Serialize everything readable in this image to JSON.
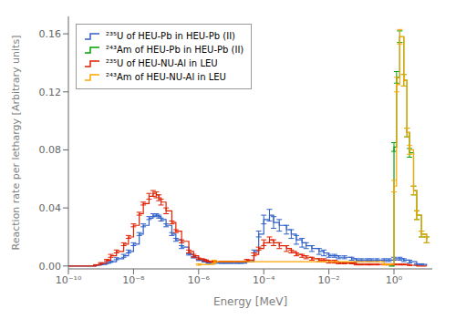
{
  "chart_data": {
    "type": "line",
    "line_style": "steps",
    "log": "x",
    "xlabel": "Energy [MeV]",
    "ylabel": "Reaction rate per lethargy [Arbitrary units]",
    "xlim": [
      1e-10,
      15
    ],
    "xticks": [
      {
        "value": 1e-10,
        "label": "10⁻¹⁰"
      },
      {
        "value": 1e-08,
        "label": "10⁻⁸"
      },
      {
        "value": 1e-06,
        "label": "10⁻⁶"
      },
      {
        "value": 0.0001,
        "label": "10⁻⁴"
      },
      {
        "value": 0.01,
        "label": "10⁻²"
      },
      {
        "value": 1,
        "label": "10⁰"
      }
    ],
    "ylim": [
      -0.002,
      0.172
    ],
    "yticks": [
      {
        "value": 0.0,
        "label": "0.00"
      },
      0.04,
      0.08,
      0.12,
      0.16
    ],
    "grid": false,
    "legend": "upper left",
    "series": [
      {
        "name": "²³⁵U of HEU-Pb in HEU-Pb (II)",
        "color": "#3060C8",
        "x": [
          1e-10,
          2e-10,
          4e-10,
          7e-10,
          1e-09,
          1.5e-09,
          2e-09,
          3e-09,
          5e-09,
          7e-09,
          1e-08,
          1.5e-08,
          2e-08,
          3e-08,
          4e-08,
          5e-08,
          6e-08,
          7e-08,
          1e-07,
          1.5e-07,
          2e-07,
          3e-07,
          5e-07,
          7e-07,
          1e-06,
          1.5e-06,
          2e-06,
          3e-06,
          5e-06,
          7e-06,
          1e-05,
          1.5e-05,
          2e-05,
          3e-05,
          5e-05,
          7e-05,
          0.0001,
          0.00015,
          0.0002,
          0.0003,
          0.0005,
          0.0007,
          0.001,
          0.0015,
          0.002,
          0.003,
          0.005,
          0.007,
          0.01,
          0.015,
          0.02,
          0.03,
          0.05,
          0.07,
          0.1,
          0.15,
          0.2,
          0.3,
          0.5,
          0.7,
          1.0,
          1.5,
          2.0,
          3.0,
          5.0,
          7.0,
          10.0
        ],
        "values": [
          0.0,
          0.0,
          0.0,
          0.0005,
          0.001,
          0.002,
          0.003,
          0.005,
          0.007,
          0.01,
          0.015,
          0.022,
          0.028,
          0.033,
          0.035,
          0.035,
          0.034,
          0.032,
          0.028,
          0.022,
          0.018,
          0.013,
          0.008,
          0.006,
          0.004,
          0.003,
          0.002,
          0.002,
          0.002,
          0.002,
          0.002,
          0.002,
          0.002,
          0.003,
          0.01,
          0.022,
          0.032,
          0.035,
          0.03,
          0.028,
          0.025,
          0.022,
          0.018,
          0.016,
          0.014,
          0.012,
          0.01,
          0.009,
          0.007,
          0.007,
          0.006,
          0.006,
          0.005,
          0.004,
          0.004,
          0.004,
          0.004,
          0.004,
          0.004,
          0.004,
          0.005,
          0.005,
          0.004,
          0.003,
          0.001,
          0.001,
          0.0
        ],
        "errors": [
          0.0,
          0.0,
          0.0,
          0.0001,
          0.0002,
          0.0003,
          0.0005,
          0.0007,
          0.001,
          0.001,
          0.001,
          0.001,
          0.001,
          0.001,
          0.001,
          0.001,
          0.001,
          0.001,
          0.001,
          0.001,
          0.001,
          0.001,
          0.0005,
          0.0005,
          0.0003,
          0.0003,
          0.0002,
          0.0002,
          0.0002,
          0.0002,
          0.0002,
          0.0002,
          0.0002,
          0.0003,
          0.001,
          0.002,
          0.003,
          0.004,
          0.004,
          0.004,
          0.003,
          0.003,
          0.003,
          0.003,
          0.002,
          0.002,
          0.002,
          0.002,
          0.001,
          0.001,
          0.001,
          0.001,
          0.001,
          0.001,
          0.001,
          0.001,
          0.001,
          0.001,
          0.001,
          0.001,
          0.001,
          0.001,
          0.001,
          0.001,
          0.0005,
          0.0005,
          0.0
        ]
      },
      {
        "name": "²⁴³Am of HEU-Pb in HEU-Pb (II)",
        "color": "#00A000",
        "x": [
          0.7,
          1.0,
          1.2,
          1.5,
          2.0,
          2.5,
          3.0,
          4.0,
          5.0,
          7.0,
          10.0
        ],
        "values": [
          0.0,
          0.082,
          0.13,
          0.158,
          0.128,
          0.092,
          0.078,
          0.052,
          0.035,
          0.022,
          0.018
        ],
        "errors": [
          0.0,
          0.003,
          0.004,
          0.004,
          0.004,
          0.003,
          0.003,
          0.003,
          0.003,
          0.002,
          0.002
        ]
      },
      {
        "name": "²³⁵U of HEU-NU-Al in LEU",
        "color": "#E02000",
        "x": [
          1e-10,
          2e-10,
          4e-10,
          7e-10,
          1e-09,
          1.5e-09,
          2e-09,
          3e-09,
          5e-09,
          7e-09,
          1e-08,
          1.5e-08,
          2e-08,
          3e-08,
          4e-08,
          5e-08,
          6e-08,
          7e-08,
          1e-07,
          1.5e-07,
          2e-07,
          3e-07,
          5e-07,
          7e-07,
          1e-06,
          1.5e-06,
          2e-06,
          3e-06,
          5e-06,
          7e-06,
          1e-05,
          1.5e-05,
          2e-05,
          3e-05,
          5e-05,
          7e-05,
          0.0001,
          0.00015,
          0.0002,
          0.0003,
          0.0005,
          0.0007,
          0.001,
          0.0015,
          0.002,
          0.003,
          0.005,
          0.007,
          0.01,
          0.015,
          0.02,
          0.03,
          0.05,
          0.07,
          0.1,
          0.15,
          0.2,
          0.3,
          0.5,
          0.7,
          1.0,
          1.5,
          2.0,
          3.0,
          5.0,
          7.0,
          10.0
        ],
        "values": [
          0.0,
          0.0,
          0.0,
          0.0008,
          0.002,
          0.004,
          0.007,
          0.01,
          0.015,
          0.02,
          0.028,
          0.036,
          0.043,
          0.048,
          0.05,
          0.049,
          0.047,
          0.044,
          0.038,
          0.03,
          0.024,
          0.017,
          0.01,
          0.007,
          0.005,
          0.004,
          0.003,
          0.003,
          0.003,
          0.003,
          0.003,
          0.003,
          0.003,
          0.004,
          0.008,
          0.012,
          0.016,
          0.018,
          0.016,
          0.014,
          0.012,
          0.01,
          0.008,
          0.007,
          0.006,
          0.005,
          0.004,
          0.004,
          0.003,
          0.003,
          0.002,
          0.002,
          0.002,
          0.001,
          0.001,
          0.001,
          0.001,
          0.001,
          0.001,
          0.001,
          0.001,
          0.001,
          0.001,
          0.0005,
          0.0,
          0.0,
          0.0
        ],
        "errors": [
          0.0,
          0.0,
          0.0,
          0.0001,
          0.0003,
          0.0005,
          0.001,
          0.001,
          0.001,
          0.001,
          0.001,
          0.001,
          0.001,
          0.002,
          0.002,
          0.002,
          0.002,
          0.002,
          0.002,
          0.001,
          0.001,
          0.001,
          0.001,
          0.001,
          0.0005,
          0.0005,
          0.0003,
          0.0003,
          0.0003,
          0.0003,
          0.0003,
          0.0003,
          0.0003,
          0.0005,
          0.001,
          0.001,
          0.002,
          0.002,
          0.002,
          0.002,
          0.002,
          0.001,
          0.001,
          0.001,
          0.001,
          0.001,
          0.001,
          0.001,
          0.001,
          0.001,
          0.0005,
          0.0005,
          0.0005,
          0.0003,
          0.0003,
          0.0003,
          0.0003,
          0.0003,
          0.0003,
          0.0003,
          0.0003,
          0.0003,
          0.0003,
          0.0001,
          0.0,
          0.0,
          0.0
        ]
      },
      {
        "name": "²⁴³Am of HEU-NU-Al in LEU",
        "color": "#FFA500",
        "x": [
          1e-06,
          3e-06,
          0.5,
          0.7,
          1.0,
          1.2,
          1.5,
          2.0,
          2.5,
          3.0,
          4.0,
          5.0,
          7.0,
          10.0
        ],
        "values": [
          0.001,
          0.003,
          0.001,
          0.001,
          0.055,
          0.125,
          0.158,
          0.128,
          0.092,
          0.08,
          0.052,
          0.035,
          0.022,
          0.018
        ],
        "errors": [
          0.0005,
          0.001,
          0.0002,
          0.0002,
          0.004,
          0.005,
          0.005,
          0.004,
          0.003,
          0.003,
          0.003,
          0.003,
          0.002,
          0.002
        ]
      }
    ]
  }
}
